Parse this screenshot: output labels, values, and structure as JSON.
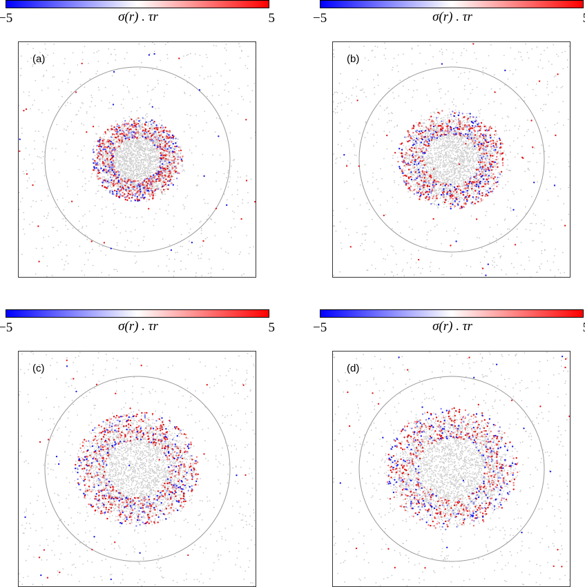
{
  "colorbar": {
    "min_label": "−5",
    "max_label": "5",
    "label": "σ(r) . τr",
    "colors": {
      "low": "#0000ff",
      "mid": "#ffffff",
      "high": "#ff0000"
    }
  },
  "panels": [
    {
      "label": "(a)"
    },
    {
      "label": "(b)"
    },
    {
      "label": "(c)"
    },
    {
      "label": "(d)"
    }
  ],
  "colors": {
    "frame": "#333333",
    "circle": "#999999",
    "neutral_particle": "#c8c8c8"
  }
}
